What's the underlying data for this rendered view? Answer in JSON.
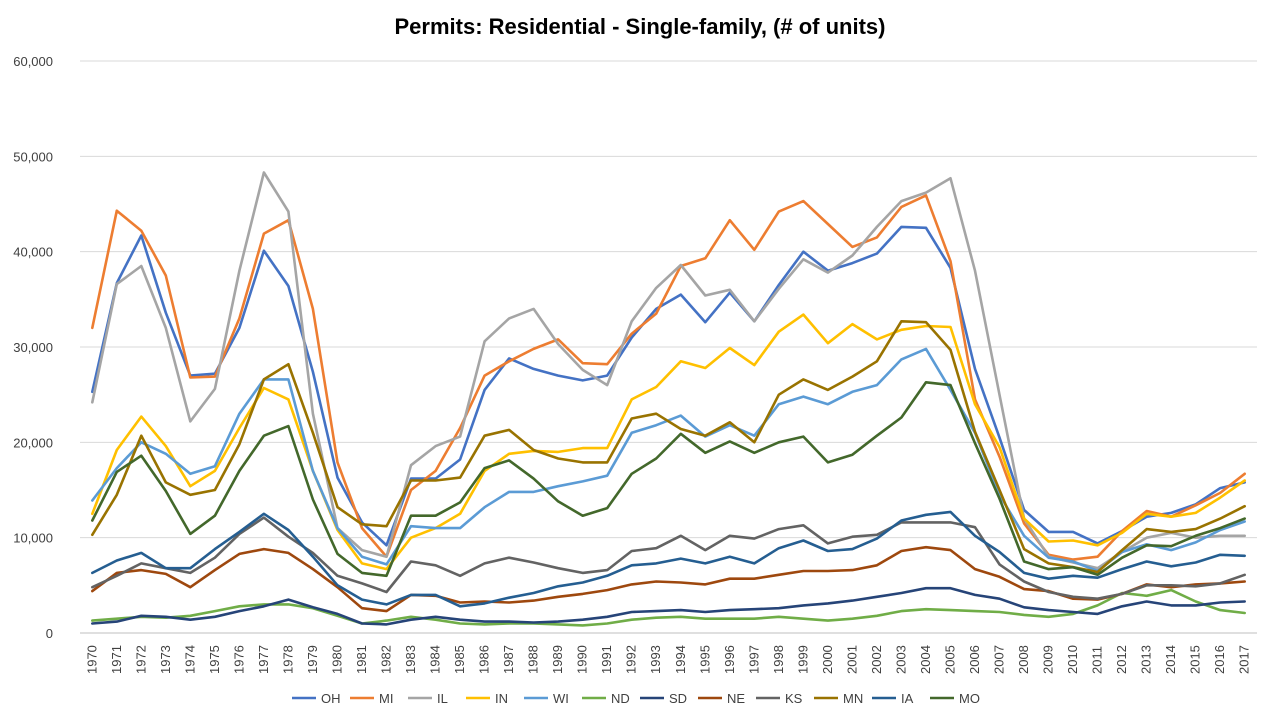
{
  "chart_data": {
    "type": "line",
    "title": "Permits: Residential - Single-family, (# of units)",
    "xlabel": "",
    "ylabel": "",
    "ylim": [
      0,
      60000
    ],
    "yticks": [
      0,
      10000,
      20000,
      30000,
      40000,
      50000,
      60000
    ],
    "ytick_labels": [
      "0",
      "10,000",
      "20,000",
      "30,000",
      "40,000",
      "50,000",
      "60,000"
    ],
    "grid": true,
    "legend_position": "bottom",
    "categories": [
      "1970",
      "1971",
      "1972",
      "1973",
      "1974",
      "1975",
      "1976",
      "1977",
      "1978",
      "1979",
      "1980",
      "1981",
      "1982",
      "1983",
      "1984",
      "1985",
      "1986",
      "1987",
      "1988",
      "1989",
      "1990",
      "1991",
      "1992",
      "1993",
      "1994",
      "1995",
      "1996",
      "1997",
      "1998",
      "1999",
      "2000",
      "2001",
      "2002",
      "2003",
      "2004",
      "2005",
      "2006",
      "2007",
      "2008",
      "2009",
      "2010",
      "2011",
      "2012",
      "2013",
      "2014",
      "2015",
      "2016",
      "2017"
    ],
    "series": [
      {
        "name": "OH",
        "color": "#4472C4",
        "values": [
          25300,
          36700,
          41700,
          33600,
          27000,
          27200,
          32000,
          40100,
          36400,
          27400,
          16300,
          11600,
          9200,
          16200,
          16200,
          18200,
          25500,
          28800,
          27700,
          27000,
          26500,
          27000,
          31000,
          34000,
          35500,
          32600,
          35700,
          32700,
          36500,
          40000,
          38000,
          38800,
          39800,
          42600,
          42500,
          38300,
          27700,
          20500,
          12900,
          10600,
          10600,
          9400,
          10700,
          12200,
          12600,
          13500,
          15200,
          15800
        ]
      },
      {
        "name": "MI",
        "color": "#ED7D31",
        "values": [
          32000,
          44300,
          42200,
          37500,
          26800,
          26900,
          33000,
          41900,
          43300,
          34000,
          17900,
          11000,
          8000,
          15000,
          17000,
          21500,
          27000,
          28500,
          29800,
          30800,
          28300,
          28200,
          31400,
          33500,
          38500,
          39300,
          43300,
          40200,
          44200,
          45300,
          42900,
          40500,
          41500,
          44700,
          45900,
          39000,
          24500,
          18500,
          11500,
          8200,
          7700,
          8000,
          10700,
          12800,
          12200,
          13400,
          14700,
          16700
        ]
      },
      {
        "name": "IL",
        "color": "#A5A5A5",
        "values": [
          24200,
          36600,
          38500,
          32000,
          22200,
          25600,
          38000,
          48300,
          44200,
          23000,
          11000,
          8700,
          8000,
          17600,
          19600,
          20600,
          30600,
          33000,
          34000,
          30300,
          27600,
          26000,
          32700,
          36200,
          38600,
          35400,
          36000,
          32700,
          36100,
          39200,
          37800,
          39600,
          42600,
          45300,
          46200,
          47700,
          38000,
          25000,
          12000,
          8000,
          7400,
          6800,
          8500,
          10000,
          10500,
          10000,
          10200,
          10200
        ]
      },
      {
        "name": "IN",
        "color": "#FFC000",
        "values": [
          12500,
          19200,
          22700,
          19600,
          15400,
          17000,
          21500,
          25700,
          24500,
          17000,
          10800,
          7300,
          6700,
          10000,
          11000,
          12500,
          17000,
          18800,
          19100,
          19000,
          19400,
          19400,
          24500,
          25800,
          28500,
          27800,
          29900,
          28100,
          31600,
          33400,
          30400,
          32400,
          30800,
          31800,
          32200,
          32100,
          24000,
          19500,
          12000,
          9600,
          9700,
          9200,
          10500,
          12500,
          12200,
          12600,
          14200,
          16000
        ]
      },
      {
        "name": "WI",
        "color": "#5B9BD5",
        "values": [
          13900,
          17300,
          20000,
          18800,
          16700,
          17500,
          23000,
          26600,
          26600,
          17000,
          11000,
          8000,
          7200,
          11200,
          11000,
          11000,
          13200,
          14800,
          14800,
          15400,
          15900,
          16500,
          21000,
          21800,
          22800,
          20600,
          21800,
          20700,
          24000,
          24800,
          24000,
          25300,
          26000,
          28700,
          29800,
          25500,
          21000,
          14500,
          10200,
          7900,
          7500,
          6500,
          8500,
          9300,
          8700,
          9500,
          10800,
          11700
        ]
      },
      {
        "name": "ND",
        "color": "#70AD47",
        "values": [
          1300,
          1500,
          1700,
          1600,
          1800,
          2300,
          2800,
          3000,
          3000,
          2600,
          1800,
          1000,
          1300,
          1700,
          1400,
          1000,
          900,
          1000,
          1000,
          900,
          800,
          1000,
          1400,
          1600,
          1700,
          1500,
          1500,
          1500,
          1700,
          1500,
          1300,
          1500,
          1800,
          2300,
          2500,
          2400,
          2300,
          2200,
          1900,
          1700,
          2000,
          2900,
          4200,
          3900,
          4500,
          3300,
          2400,
          2100
        ]
      },
      {
        "name": "SD",
        "color": "#264478",
        "values": [
          1000,
          1200,
          1800,
          1700,
          1400,
          1700,
          2300,
          2800,
          3500,
          2700,
          2000,
          1000,
          900,
          1400,
          1700,
          1400,
          1200,
          1200,
          1100,
          1200,
          1400,
          1700,
          2200,
          2300,
          2400,
          2200,
          2400,
          2500,
          2600,
          2900,
          3100,
          3400,
          3800,
          4200,
          4700,
          4700,
          4000,
          3600,
          2700,
          2400,
          2200,
          2000,
          2800,
          3300,
          2900,
          2900,
          3200,
          3300
        ]
      },
      {
        "name": "NE",
        "color": "#9E480E",
        "values": [
          4400,
          6300,
          6600,
          6200,
          4800,
          6600,
          8300,
          8800,
          8400,
          6700,
          4800,
          2600,
          2300,
          4000,
          3900,
          3200,
          3300,
          3200,
          3400,
          3800,
          4100,
          4500,
          5100,
          5400,
          5300,
          5100,
          5700,
          5700,
          6100,
          6500,
          6500,
          6600,
          7100,
          8600,
          9000,
          8700,
          6700,
          5900,
          4600,
          4400,
          3600,
          3500,
          4100,
          5100,
          4800,
          5100,
          5200,
          5400
        ]
      },
      {
        "name": "KS",
        "color": "#636363",
        "values": [
          4800,
          6000,
          7300,
          6800,
          6300,
          7900,
          10400,
          12100,
          10100,
          8400,
          6000,
          5200,
          4300,
          7500,
          7100,
          6000,
          7300,
          7900,
          7400,
          6800,
          6300,
          6600,
          8600,
          8900,
          10200,
          8700,
          10200,
          9900,
          10900,
          11300,
          9400,
          10100,
          10300,
          11600,
          11600,
          11600,
          11100,
          7200,
          5400,
          4300,
          3800,
          3600,
          4100,
          5000,
          5000,
          4900,
          5200,
          6100
        ]
      },
      {
        "name": "MN",
        "color": "#997300",
        "values": [
          10300,
          14500,
          20700,
          15800,
          14500,
          15000,
          19800,
          26600,
          28200,
          21000,
          13200,
          11400,
          11200,
          16000,
          16000,
          16300,
          20700,
          21300,
          19200,
          18300,
          17900,
          17900,
          22500,
          23000,
          21400,
          20700,
          22100,
          20000,
          25000,
          26600,
          25500,
          26900,
          28500,
          32700,
          32600,
          29700,
          21100,
          15000,
          8800,
          7300,
          6900,
          6400,
          8700,
          10900,
          10600,
          10900,
          12000,
          13300
        ]
      },
      {
        "name": "IA",
        "color": "#255E91",
        "values": [
          6300,
          7600,
          8400,
          6800,
          6800,
          8800,
          10600,
          12500,
          10800,
          8000,
          5000,
          3500,
          3000,
          4000,
          4000,
          2800,
          3100,
          3700,
          4200,
          4900,
          5300,
          6000,
          7100,
          7300,
          7800,
          7300,
          8000,
          7300,
          8900,
          9700,
          8600,
          8800,
          9900,
          11800,
          12400,
          12700,
          10200,
          8500,
          6300,
          5700,
          6000,
          5800,
          6700,
          7500,
          7000,
          7400,
          8200,
          8100
        ]
      },
      {
        "name": "MO",
        "color": "#43682B",
        "values": [
          11800,
          16900,
          18600,
          14900,
          10400,
          12300,
          17000,
          20700,
          21700,
          14000,
          8300,
          6300,
          6000,
          12300,
          12300,
          13700,
          17300,
          18100,
          16200,
          13800,
          12300,
          13100,
          16700,
          18300,
          20900,
          18900,
          20100,
          18900,
          20000,
          20600,
          17900,
          18700,
          20700,
          22600,
          26300,
          26000,
          19900,
          14100,
          7500,
          6700,
          6900,
          6100,
          7900,
          9200,
          9100,
          10200,
          11000,
          12000
        ]
      }
    ]
  }
}
